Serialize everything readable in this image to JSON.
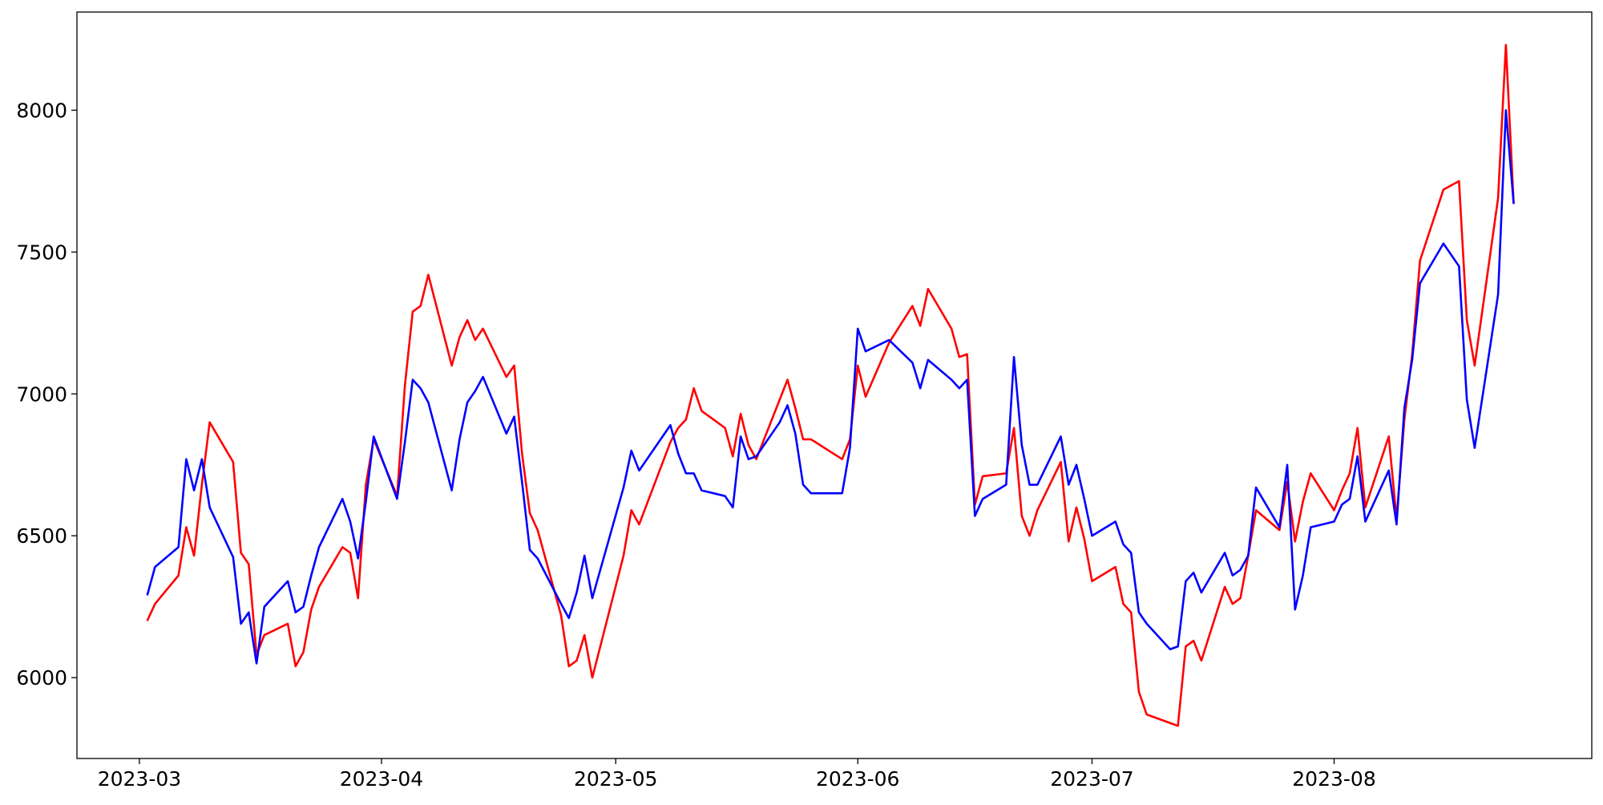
{
  "chart_data": {
    "type": "line",
    "x": [
      1,
      2,
      5,
      6,
      7,
      8,
      9,
      12,
      13,
      14,
      15,
      16,
      19,
      20,
      21,
      22,
      23,
      26,
      27,
      28,
      29,
      30,
      33,
      34,
      35,
      36,
      37,
      40,
      41,
      42,
      43,
      44,
      47,
      48,
      49,
      50,
      51,
      54,
      55,
      56,
      57,
      58,
      62,
      63,
      64,
      68,
      69,
      70,
      71,
      72,
      75,
      76,
      77,
      78,
      79,
      82,
      83,
      84,
      85,
      86,
      90,
      91,
      92,
      93,
      96,
      99,
      100,
      101,
      104,
      105,
      106,
      107,
      108,
      111,
      112,
      113,
      114,
      115,
      118,
      119,
      120,
      121,
      122,
      125,
      126,
      127,
      128,
      129,
      132,
      133,
      134,
      135,
      136,
      139,
      140,
      141,
      142,
      143,
      146,
      147,
      148,
      149,
      150,
      153,
      154,
      155,
      156,
      157,
      160,
      161,
      162,
      163,
      164,
      167,
      169,
      170,
      171,
      174,
      175,
      176
    ],
    "series": [
      {
        "color": "#ff0000",
        "values": [
          6200,
          6260,
          6360,
          6530,
          6430,
          6680,
          6900,
          6760,
          6440,
          6400,
          6080,
          6150,
          6190,
          6040,
          6090,
          6240,
          6320,
          6460,
          6440,
          6280,
          6680,
          6840,
          6640,
          7030,
          7290,
          7310,
          7420,
          7100,
          7200,
          7260,
          7190,
          7230,
          7060,
          7100,
          6790,
          6580,
          6520,
          6220,
          6040,
          6060,
          6150,
          6000,
          6430,
          6590,
          6540,
          6830,
          6880,
          6910,
          7020,
          6940,
          6880,
          6780,
          6930,
          6820,
          6770,
          6980,
          7050,
          6950,
          6840,
          6840,
          6770,
          6840,
          7100,
          6990,
          7180,
          7310,
          7240,
          7370,
          7230,
          7130,
          7140,
          6610,
          6710,
          6720,
          6880,
          6570,
          6500,
          6590,
          6760,
          6480,
          6600,
          6490,
          6340,
          6390,
          6260,
          6230,
          5950,
          5870,
          5840,
          5830,
          6110,
          6130,
          6060,
          6320,
          6260,
          6280,
          6430,
          6590,
          6520,
          6690,
          6480,
          6620,
          6720,
          6590,
          6660,
          6720,
          6880,
          6600,
          6850,
          6560,
          6910,
          7140,
          7470,
          7720,
          7750,
          7260,
          7100,
          7690,
          8230,
          7670
        ]
      },
      {
        "color": "#0000ff",
        "values": [
          6290,
          6390,
          6460,
          6770,
          6660,
          6770,
          6600,
          6425,
          6190,
          6230,
          6050,
          6250,
          6340,
          6230,
          6250,
          6360,
          6460,
          6630,
          6550,
          6420,
          6620,
          6850,
          6630,
          6830,
          7050,
          7020,
          6970,
          6660,
          6840,
          6970,
          7010,
          7060,
          6860,
          6920,
          6690,
          6450,
          6420,
          6260,
          6210,
          6300,
          6430,
          6280,
          6670,
          6800,
          6730,
          6890,
          6790,
          6720,
          6720,
          6660,
          6640,
          6600,
          6850,
          6770,
          6780,
          6900,
          6960,
          6860,
          6680,
          6650,
          6650,
          6810,
          7230,
          7150,
          7190,
          7110,
          7020,
          7120,
          7050,
          7020,
          7050,
          6570,
          6630,
          6680,
          7130,
          6820,
          6680,
          6680,
          6850,
          6680,
          6750,
          6630,
          6500,
          6550,
          6470,
          6440,
          6230,
          6190,
          6100,
          6110,
          6340,
          6370,
          6300,
          6440,
          6360,
          6380,
          6430,
          6670,
          6530,
          6750,
          6240,
          6360,
          6530,
          6550,
          6610,
          6630,
          6780,
          6550,
          6730,
          6540,
          6950,
          7120,
          7390,
          7530,
          7450,
          6980,
          6810,
          7350,
          8000,
          7670
        ]
      }
    ],
    "xlim": [
      -8,
      186
    ],
    "xticks": [
      {
        "value": 0,
        "label": "2023-03"
      },
      {
        "value": 31,
        "label": "2023-04"
      },
      {
        "value": 61,
        "label": "2023-05"
      },
      {
        "value": 92,
        "label": "2023-06"
      },
      {
        "value": 122,
        "label": "2023-07"
      },
      {
        "value": 153,
        "label": "2023-08"
      }
    ],
    "ylim": [
      5715,
      8346
    ],
    "yticks": [
      6000,
      6500,
      7000,
      7500,
      8000
    ],
    "grid": false
  }
}
